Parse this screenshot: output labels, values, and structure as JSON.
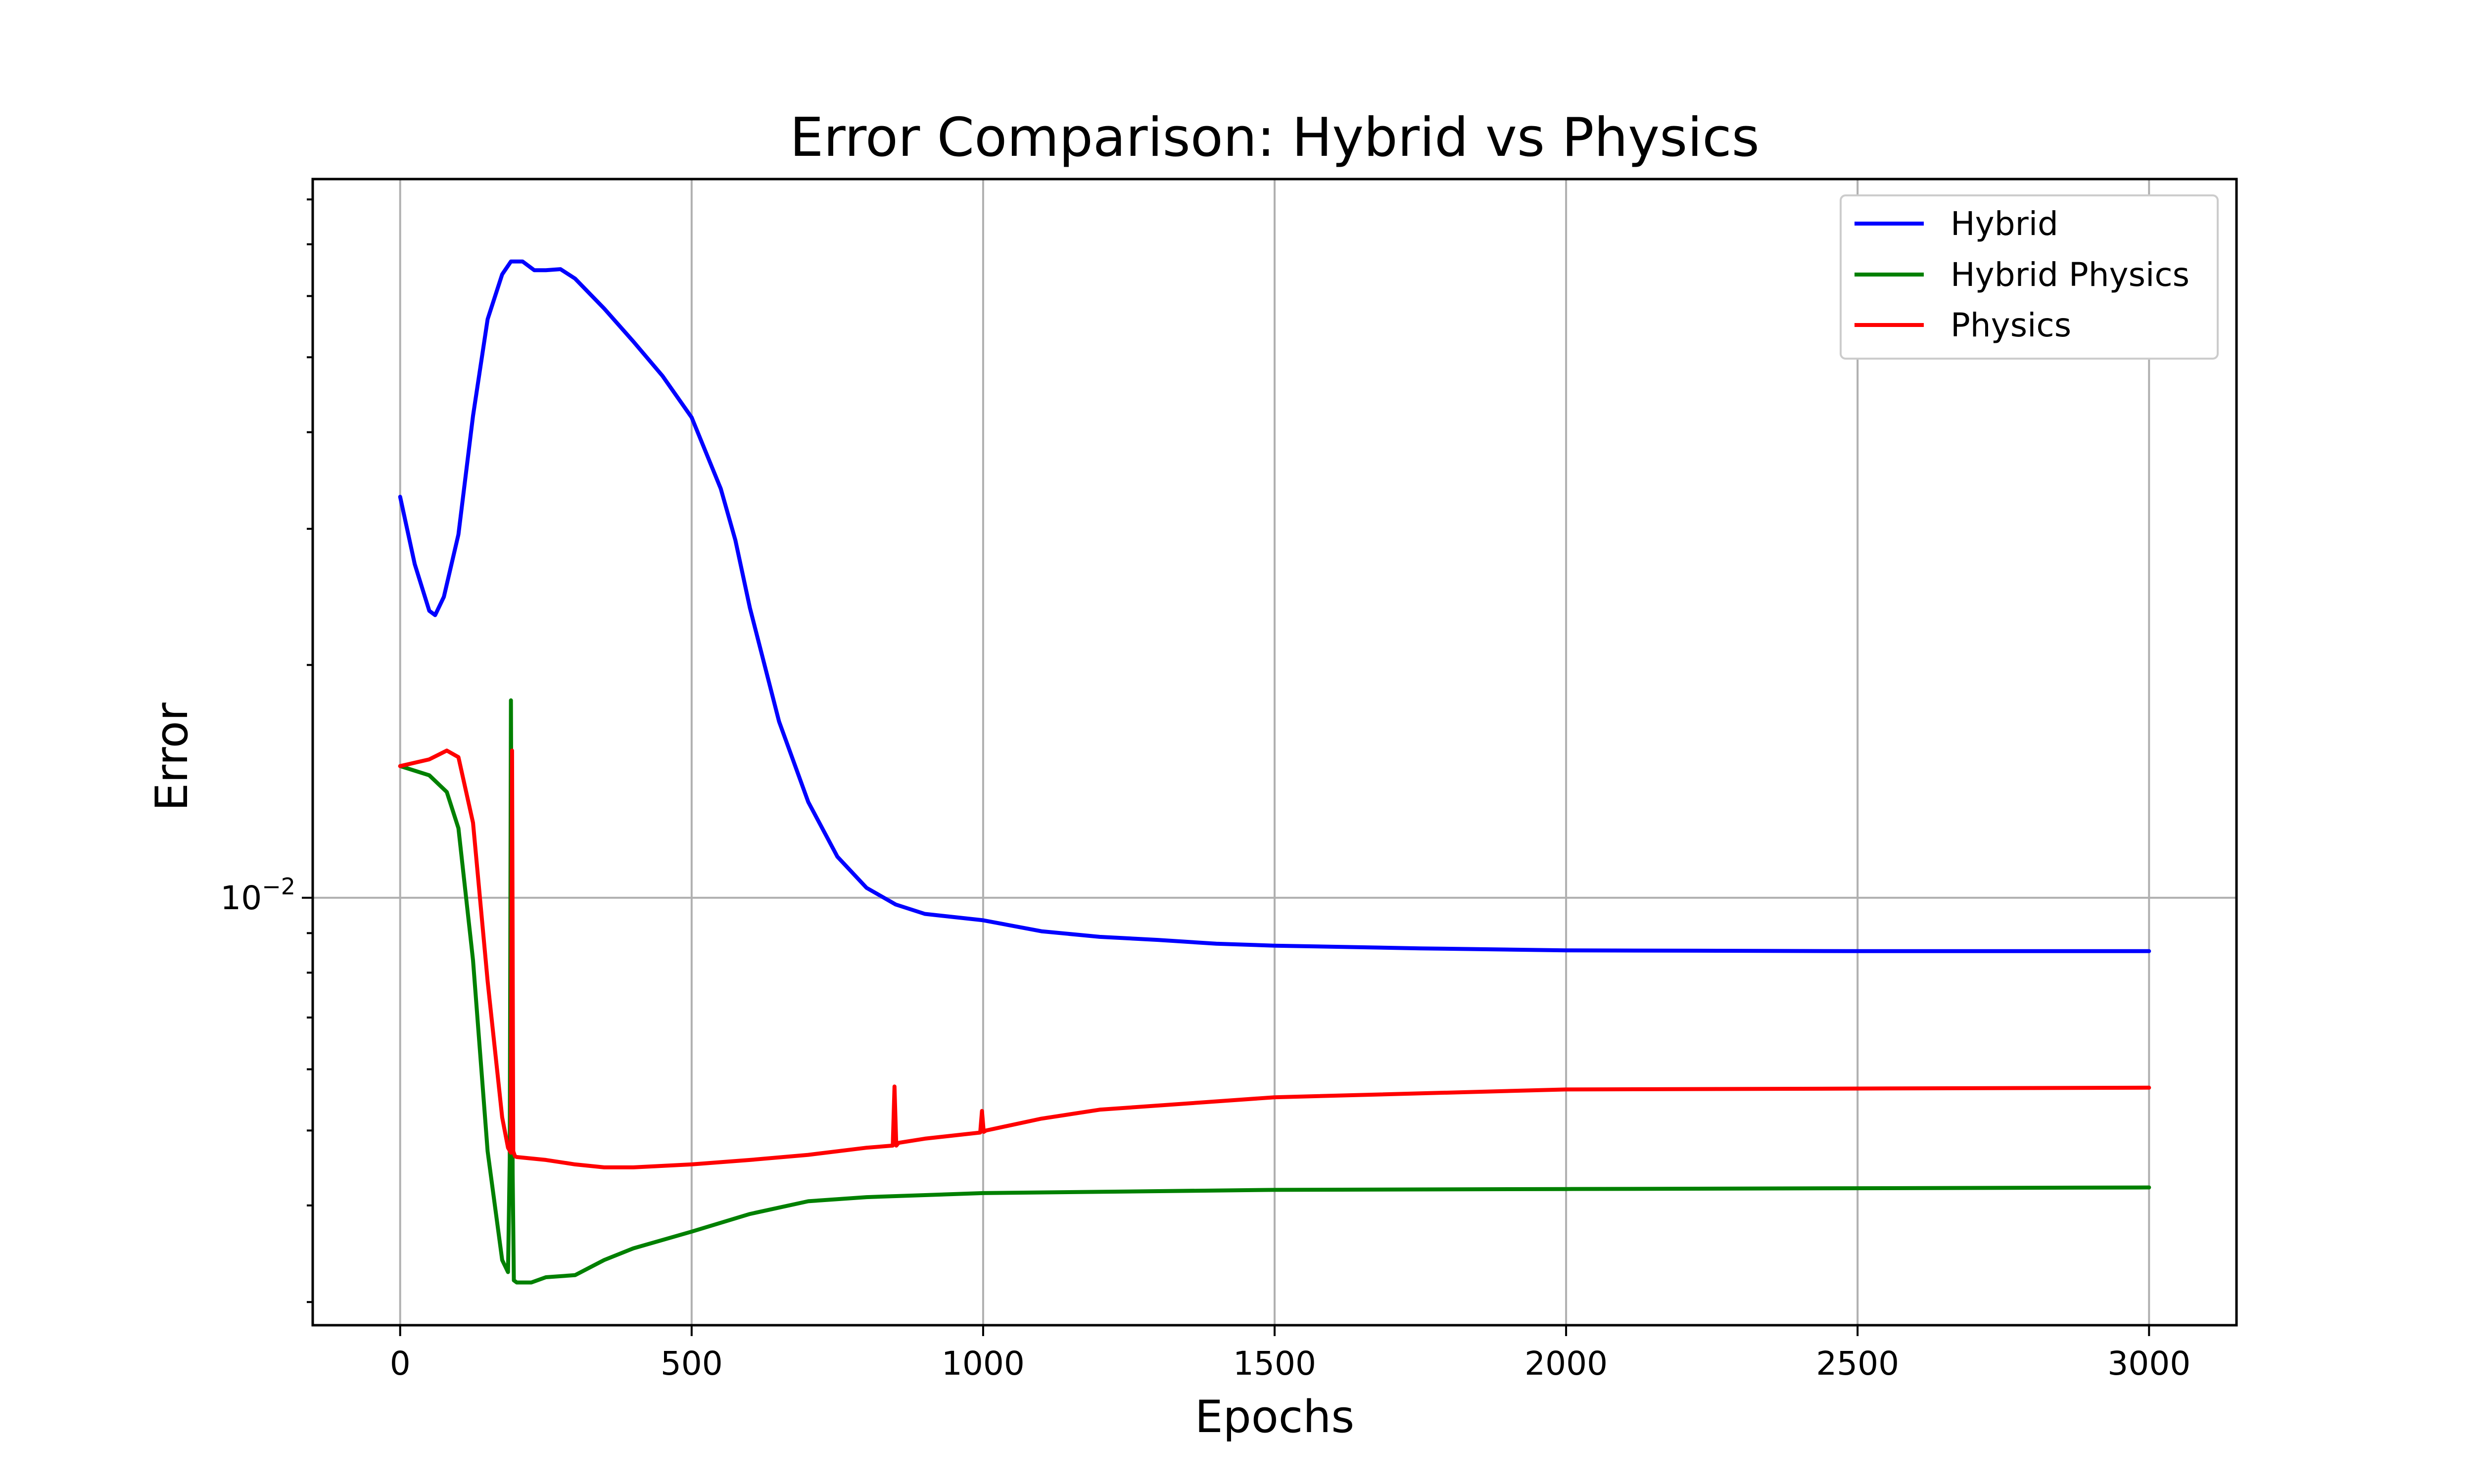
{
  "chart_data": {
    "type": "line",
    "title": "Error Comparison: Hybrid vs Physics",
    "xlabel": "Epochs",
    "ylabel": "Error",
    "y_scale": "log",
    "xlim": [
      -150,
      3150
    ],
    "ylim": [
      0.0028,
      0.085
    ],
    "x_ticks": [
      0,
      500,
      1000,
      1500,
      2000,
      2500,
      3000
    ],
    "x_tick_labels": [
      "0",
      "500",
      "1000",
      "1500",
      "2000",
      "2500",
      "3000"
    ],
    "y_major_tick": 0.01,
    "y_major_tick_label": "10^-2",
    "y_minor_ticks": [
      0.003,
      0.004,
      0.005,
      0.006,
      0.007,
      0.008,
      0.009,
      0.02,
      0.03,
      0.04,
      0.05,
      0.06,
      0.07,
      0.08
    ],
    "grid": true,
    "legend_position": "top-right",
    "series": [
      {
        "name": "Hybrid",
        "color": "#0000ff",
        "x": [
          0,
          25,
          50,
          60,
          75,
          100,
          125,
          150,
          175,
          190,
          210,
          230,
          250,
          275,
          300,
          350,
          400,
          450,
          500,
          550,
          575,
          600,
          650,
          700,
          750,
          800,
          850,
          900,
          1000,
          1100,
          1200,
          1300,
          1400,
          1500,
          1750,
          2000,
          2500,
          3000
        ],
        "y": [
          0.033,
          0.027,
          0.0235,
          0.0232,
          0.0245,
          0.0295,
          0.042,
          0.056,
          0.064,
          0.0665,
          0.0665,
          0.0648,
          0.0648,
          0.065,
          0.0632,
          0.0578,
          0.0524,
          0.0473,
          0.0418,
          0.0338,
          0.029,
          0.0237,
          0.0169,
          0.0133,
          0.0113,
          0.0103,
          0.0098,
          0.00953,
          0.00935,
          0.00905,
          0.0089,
          0.00882,
          0.00872,
          0.00867,
          0.0086,
          0.00855,
          0.00853,
          0.00853
        ]
      },
      {
        "name": "Hybrid Physics",
        "color": "#008000",
        "x": [
          0,
          50,
          80,
          100,
          125,
          150,
          175,
          185,
          188,
          190,
          193,
          195,
          200,
          225,
          250,
          300,
          350,
          400,
          500,
          600,
          700,
          800,
          1000,
          1500,
          2000,
          3000
        ],
        "y": [
          0.0148,
          0.0144,
          0.0137,
          0.0123,
          0.0083,
          0.0047,
          0.0034,
          0.00328,
          0.0046,
          0.018,
          0.0044,
          0.0032,
          0.00318,
          0.00318,
          0.00323,
          0.00325,
          0.0034,
          0.00352,
          0.0037,
          0.0039,
          0.00405,
          0.0041,
          0.00415,
          0.00419,
          0.0042,
          0.00422
        ]
      },
      {
        "name": "Physics",
        "color": "#ff0000",
        "x": [
          0,
          50,
          80,
          100,
          125,
          150,
          175,
          185,
          190,
          192,
          194,
          197,
          200,
          250,
          300,
          350,
          400,
          500,
          600,
          700,
          800,
          845,
          848,
          851,
          855,
          900,
          995,
          998,
          1001,
          1005,
          1100,
          1200,
          1500,
          2000,
          3000
        ],
        "y": [
          0.0148,
          0.0151,
          0.0155,
          0.0152,
          0.0125,
          0.0078,
          0.0052,
          0.00475,
          0.00468,
          0.0155,
          0.0047,
          0.00463,
          0.00462,
          0.00458,
          0.00452,
          0.00448,
          0.00448,
          0.00452,
          0.00458,
          0.00465,
          0.00475,
          0.00478,
          0.0057,
          0.00478,
          0.00482,
          0.00488,
          0.00497,
          0.0053,
          0.00498,
          0.005,
          0.00518,
          0.00532,
          0.00552,
          0.00565,
          0.00568
        ]
      }
    ]
  }
}
